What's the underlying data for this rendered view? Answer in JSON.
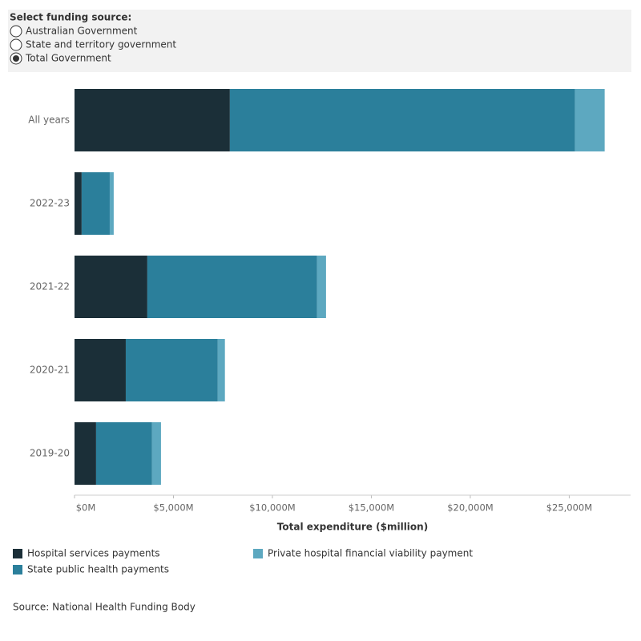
{
  "filter": {
    "label": "Select funding source:",
    "options": [
      "Australian Government",
      "State and territory government",
      "Total Government"
    ],
    "selected": 2
  },
  "chart_data": {
    "type": "stacked-bar-horizontal",
    "categories": [
      "All years",
      "2022-23",
      "2021-22",
      "2020-21",
      "2019-20"
    ],
    "series": [
      {
        "name": "Hospital services payments",
        "color": "#1b2f38",
        "values": [
          7850,
          360,
          3680,
          2590,
          1090
        ]
      },
      {
        "name": "State public health payments",
        "color": "#2b7f9b",
        "values": [
          17440,
          1420,
          8580,
          4650,
          2830
        ]
      },
      {
        "name": "Private hospital financial viability payment",
        "color": "#5da8c0",
        "values": [
          1500,
          200,
          450,
          360,
          450
        ]
      }
    ],
    "xlabel": "Total expenditure ($million)",
    "xlim": [
      0,
      28100
    ],
    "xticks": [
      {
        "value": 0,
        "label": "$0M"
      },
      {
        "value": 5000,
        "label": "$5,000M"
      },
      {
        "value": 10000,
        "label": "$10,000M"
      },
      {
        "value": 15000,
        "label": "$15,000M"
      },
      {
        "value": 20000,
        "label": "$20,000M"
      },
      {
        "value": 25000,
        "label": "$25,000M"
      }
    ],
    "source": "Source: National Health Funding Body"
  }
}
